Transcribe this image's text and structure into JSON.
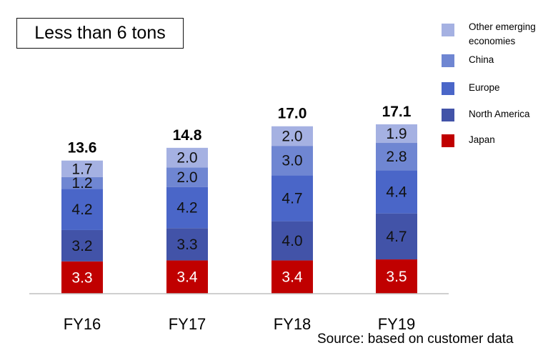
{
  "chart_data": {
    "type": "bar",
    "stacked": true,
    "title": "Less than 6 tons",
    "categories": [
      "FY16",
      "FY17",
      "FY18",
      "FY19"
    ],
    "totals": [
      "13.6",
      "14.8",
      "17.0",
      "17.1"
    ],
    "series": [
      {
        "name": "Japan",
        "color": "#c00000",
        "values": [
          3.3,
          3.4,
          3.4,
          3.5
        ]
      },
      {
        "name": "North America",
        "color": "#4253a8",
        "values": [
          3.2,
          3.3,
          4.0,
          4.7
        ]
      },
      {
        "name": "Europe",
        "color": "#4a66c8",
        "values": [
          4.2,
          4.2,
          4.7,
          4.4
        ]
      },
      {
        "name": "China",
        "color": "#6f86d2",
        "values": [
          1.2,
          2.0,
          3.0,
          2.8
        ]
      },
      {
        "name": "Other emerging economies",
        "color": "#a5b1e2",
        "values": [
          1.7,
          2.0,
          2.0,
          1.9
        ]
      }
    ],
    "legend_order": [
      "Other emerging economies",
      "China",
      "Europe",
      "North America",
      "Japan"
    ],
    "legend_position": "right",
    "grid": false
  },
  "source": "Source: based on customer data"
}
